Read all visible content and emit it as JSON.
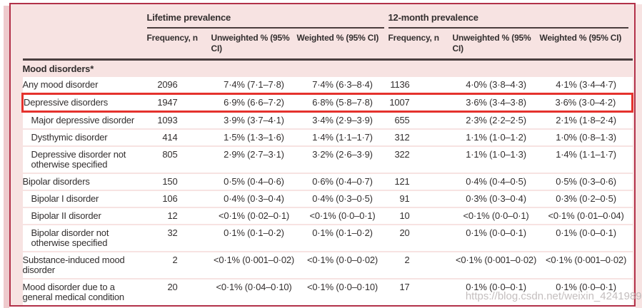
{
  "colors": {
    "figure_background": "#f7e3e2",
    "figure_border": "#b23149",
    "highlight_box": "#e5322d",
    "table_rules": "#4a3e3e",
    "left_stripe": "#eecacd"
  },
  "table": {
    "groups": [
      {
        "label": "Lifetime prevalence"
      },
      {
        "label": "12-month prevalence"
      }
    ],
    "column_headers": [
      "Frequency, n",
      "Unweighted % (95% CI)",
      "Weighted % (95% CI)",
      "Frequency, n",
      "Unweighted % (95% CI)",
      "Weighted % (95% CI)"
    ],
    "rows": [
      {
        "label": "Mood disorders*",
        "section": true
      },
      {
        "label": "Any mood disorder",
        "indent": 0,
        "highlight": false,
        "values": [
          "2096",
          "7·4% (7·1–7·8)",
          "7·4% (6·3–8·4)",
          "1136",
          "4·0% (3·8–4·3)",
          "4·1% (3·4–4·7)"
        ]
      },
      {
        "label": "Depressive disorders",
        "indent": 0,
        "highlight": true,
        "values": [
          "1947",
          "6·9% (6·6–7·2)",
          "6·8% (5·8–7·8)",
          "1007",
          "3·6% (3·4–3·8)",
          "3·6% (3·0–4·2)"
        ]
      },
      {
        "label": "Major depressive disorder",
        "indent": 1,
        "highlight": false,
        "values": [
          "1093",
          "3·9% (3·7–4·1)",
          "3·4% (2·9–3·9)",
          "655",
          "2·3% (2·2–2·5)",
          "2·1% (1·8–2·4)"
        ]
      },
      {
        "label": "Dysthymic disorder",
        "indent": 1,
        "highlight": false,
        "values": [
          "414",
          "1·5% (1·3–1·6)",
          "1·4% (1·1–1·7)",
          "312",
          "1·1% (1·0–1·2)",
          "1·0% (0·8–1·3)"
        ]
      },
      {
        "label": "Depressive disorder not otherwise specified",
        "indent": 1,
        "highlight": false,
        "values": [
          "805",
          "2·9% (2·7–3·1)",
          "3·2% (2·6–3·9)",
          "322",
          "1·1% (1·0–1·3)",
          "1·4% (1·1–1·7)"
        ]
      },
      {
        "label": "Bipolar disorders",
        "indent": 0,
        "highlight": false,
        "values": [
          "150",
          "0·5% (0·4–0·6)",
          "0·6% (0·4–0·7)",
          "121",
          "0·4% (0·4–0·5)",
          "0·5% (0·3–0·6)"
        ]
      },
      {
        "label": "Bipolar I disorder",
        "indent": 1,
        "highlight": false,
        "values": [
          "106",
          "0·4% (0·3–0·4)",
          "0·4% (0·3–0·5)",
          "91",
          "0·3% (0·3–0·4)",
          "0·3% (0·2–0·5)"
        ]
      },
      {
        "label": "Bipolar II disorder",
        "indent": 1,
        "highlight": false,
        "values": [
          "12",
          "<0·1% (0·02–0·1)",
          "<0·1% (0·0–0·1)",
          "10",
          "<0·1% (0·0–0·1)",
          "<0·1% (0·01–0·04)"
        ]
      },
      {
        "label": "Bipolar disorder not otherwise specified",
        "indent": 1,
        "highlight": false,
        "values": [
          "32",
          "0·1% (0·1–0·2)",
          "0·1% (0·1–0·2)",
          "20",
          "0·1% (0·0–0·1)",
          "0·1% (0·0–0·1)"
        ]
      },
      {
        "label": "Substance-induced mood disorder",
        "indent": 0,
        "highlight": false,
        "values": [
          "2",
          "<0·1% (0·001–0·02)",
          "<0·1% (0·0–0·02)",
          "2",
          "<0·1% (0·001–0·02)",
          "<0·1% (0·001–0·02)"
        ]
      },
      {
        "label": "Mood disorder due to a general medical condition",
        "indent": 0,
        "highlight": false,
        "values": [
          "20",
          "<0·1% (0·04–0·10)",
          "<0·1% (0·0–0·10)",
          "17",
          "0·1% (0·0–0·1)",
          "0·1% (0·0–0·1)"
        ]
      }
    ]
  },
  "watermark": "https://blog.csdn.net/weixin_42419898"
}
